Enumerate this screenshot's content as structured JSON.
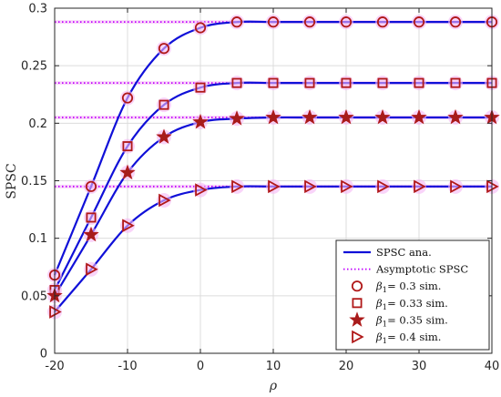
{
  "chart_data": {
    "type": "line",
    "xlabel": "ρ",
    "ylabel": "SPSC",
    "xlim": [
      -20,
      40
    ],
    "ylim": [
      0,
      0.3
    ],
    "xticks": [
      -20,
      -10,
      0,
      10,
      20,
      30,
      40
    ],
    "xtick_labels": [
      "-20",
      "-10",
      "0",
      "10",
      "20",
      "30",
      "40"
    ],
    "yticks": [
      0,
      0.05,
      0.1,
      0.15,
      0.2,
      0.25,
      0.3
    ],
    "ytick_labels": [
      "0",
      "0.05",
      "0.1",
      "0.15",
      "0.2",
      "0.25",
      "0.3"
    ],
    "grid": true,
    "legend_position": "bottom-right",
    "x": [
      -20,
      -15,
      -10,
      -5,
      0,
      5,
      10,
      15,
      20,
      25,
      30,
      35,
      40
    ],
    "series": [
      {
        "group": "β1 = 0.3",
        "marker": "circle",
        "analytic": [
          0.068,
          0.145,
          0.222,
          0.265,
          0.283,
          0.288,
          0.288,
          0.288,
          0.288,
          0.288,
          0.288,
          0.288,
          0.288
        ],
        "asymptote": 0.288
      },
      {
        "group": "β1 = 0.33",
        "marker": "square",
        "analytic": [
          0.055,
          0.118,
          0.18,
          0.216,
          0.231,
          0.235,
          0.235,
          0.235,
          0.235,
          0.235,
          0.235,
          0.235,
          0.235
        ],
        "asymptote": 0.235
      },
      {
        "group": "β1 = 0.35",
        "marker": "star",
        "analytic": [
          0.05,
          0.103,
          0.157,
          0.188,
          0.201,
          0.204,
          0.205,
          0.205,
          0.205,
          0.205,
          0.205,
          0.205,
          0.205
        ],
        "asymptote": 0.205
      },
      {
        "group": "β1 = 0.4",
        "marker": "triangle-right",
        "analytic": [
          0.036,
          0.073,
          0.111,
          0.133,
          0.142,
          0.145,
          0.145,
          0.145,
          0.145,
          0.145,
          0.145,
          0.145,
          0.145
        ],
        "asymptote": 0.145
      }
    ],
    "legend": [
      {
        "label": "SPSC ana.",
        "kind": "line"
      },
      {
        "label": "Asymptotic SPSC",
        "kind": "dotted"
      },
      {
        "beta": "β",
        "sub": "1",
        "label": "= 0.3 sim.",
        "kind": "circle"
      },
      {
        "beta": "β",
        "sub": "1",
        "label": "= 0.33 sim.",
        "kind": "square"
      },
      {
        "beta": "β",
        "sub": "1",
        "label": "= 0.35 sim.",
        "kind": "star"
      },
      {
        "beta": "β",
        "sub": "1",
        "label": "= 0.4 sim.",
        "kind": "triangle-right"
      }
    ],
    "colors": {
      "analytic_line": "#1010d8",
      "asymptote_line": "#c000ff",
      "marker_stroke": "#b01818",
      "marker_fill": "#a61c1c",
      "marker_glow": "#f5b8f5"
    }
  }
}
